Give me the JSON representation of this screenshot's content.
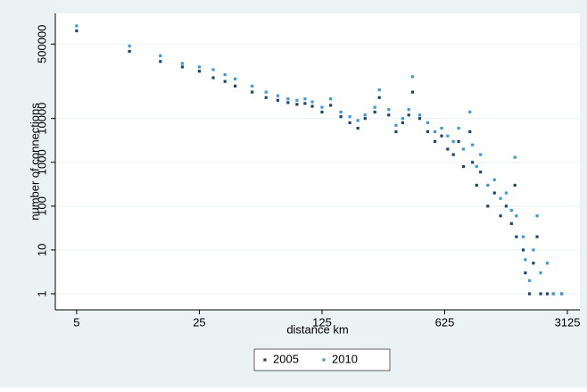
{
  "chart_data": {
    "type": "scatter",
    "xlabel": "distance km",
    "ylabel": "number of connections",
    "xscale": "log",
    "yscale": "log",
    "xlim": [
      3.78,
      3680
    ],
    "ylim": [
      0.43,
      2500000
    ],
    "xticks": [
      5,
      25,
      125,
      625,
      3125
    ],
    "yticks": [
      1,
      10,
      100,
      1000,
      10000,
      500000
    ],
    "grid": true,
    "legend_position": "bottom",
    "x": [
      5,
      10,
      15,
      20,
      25,
      30,
      35,
      40,
      50,
      60,
      70,
      80,
      90,
      100,
      110,
      125,
      140,
      160,
      180,
      200,
      220,
      250,
      265,
      300,
      330,
      360,
      390,
      410,
      450,
      500,
      550,
      600,
      650,
      700,
      750,
      800,
      870,
      900,
      950,
      1000,
      1100,
      1200,
      1300,
      1400,
      1500,
      1570,
      1600,
      1750,
      1800,
      1900,
      2000,
      2100,
      2200,
      2400,
      2600,
      2900
    ],
    "series": [
      {
        "name": "2005",
        "color": "#1a476f",
        "values": [
          1000000,
          340000,
          200000,
          150000,
          120000,
          85000,
          70000,
          55000,
          40000,
          30000,
          26000,
          23000,
          21000,
          22000,
          19000,
          14000,
          20000,
          11000,
          8000,
          6000,
          10000,
          14000,
          30000,
          12000,
          5000,
          8000,
          12000,
          40000,
          10000,
          5000,
          3000,
          4000,
          2000,
          1500,
          3000,
          800,
          5000,
          1000,
          300,
          600,
          100,
          200,
          60,
          100,
          40,
          300,
          20,
          10,
          3,
          1,
          5,
          20,
          1,
          1,
          1,
          1
        ]
      },
      {
        "name": "2010",
        "color": "#3a9ad9",
        "values": [
          1300000,
          450000,
          270000,
          180000,
          150000,
          130000,
          100000,
          80000,
          55000,
          40000,
          33000,
          28000,
          26000,
          28000,
          24000,
          18000,
          28000,
          14000,
          11000,
          9000,
          12000,
          18000,
          45000,
          16000,
          7000,
          10000,
          16000,
          90000,
          12000,
          8000,
          5000,
          6000,
          4000,
          3000,
          6000,
          2000,
          14000,
          2500,
          800,
          1500,
          300,
          400,
          150,
          200,
          80,
          1300,
          60,
          20,
          6,
          2,
          10,
          60,
          3,
          5,
          1,
          1
        ]
      }
    ]
  }
}
